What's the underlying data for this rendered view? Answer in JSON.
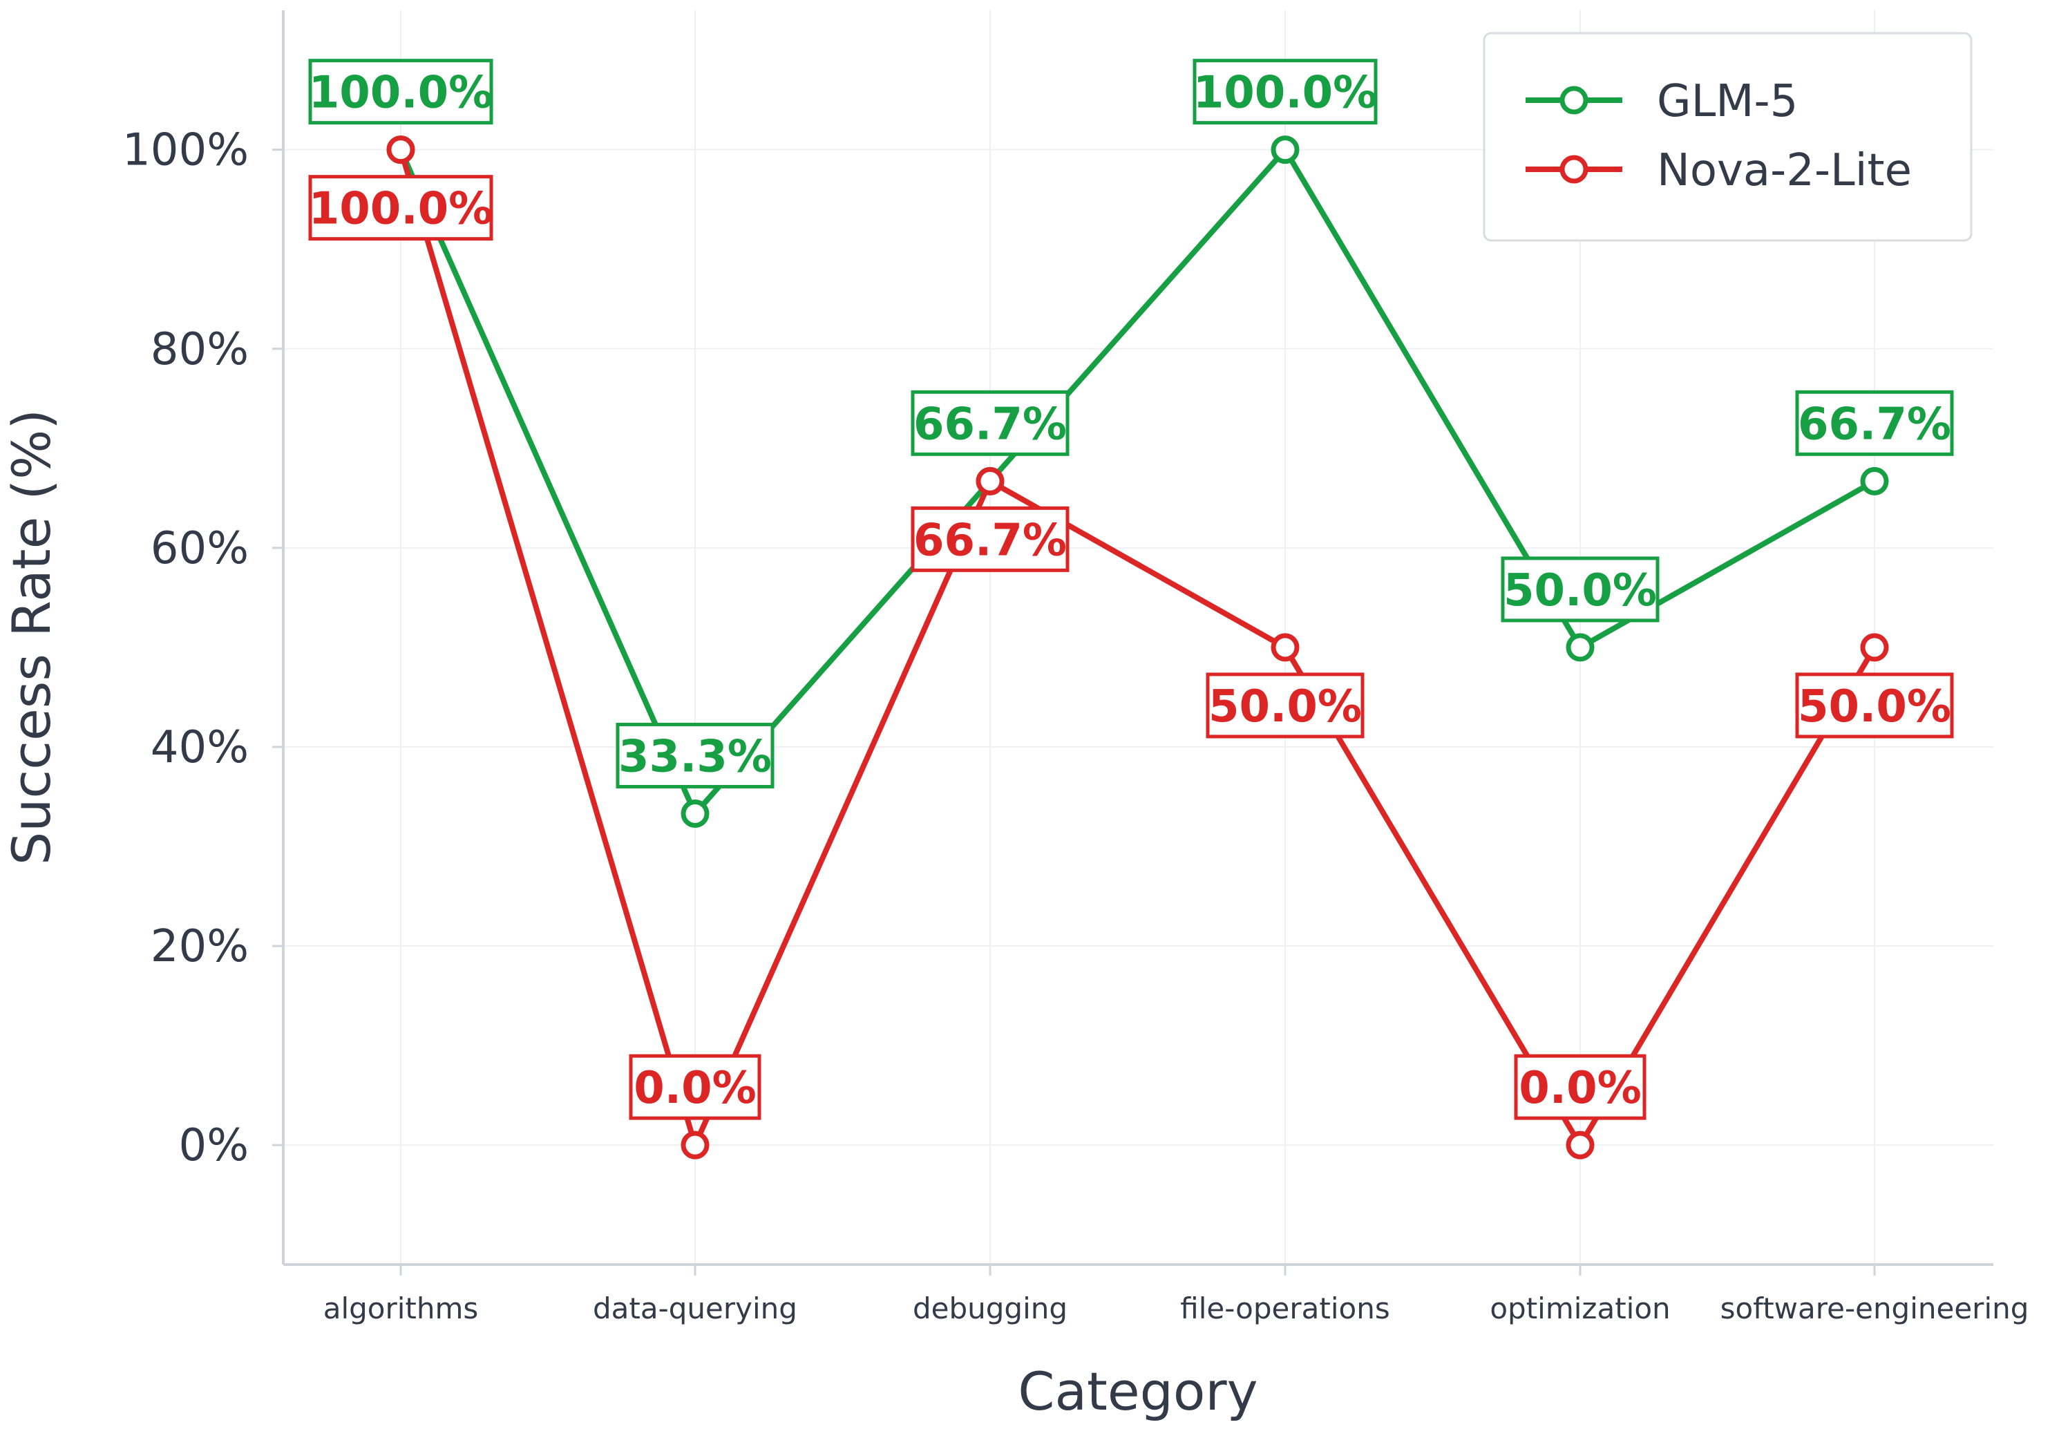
{
  "chart_data": {
    "type": "line",
    "title": "",
    "xlabel": "Category",
    "ylabel": "Success Rate (%)",
    "categories": [
      "algorithms",
      "data-querying",
      "debugging",
      "file-operations",
      "optimization",
      "software-engineering"
    ],
    "ylim": [
      -12,
      114
    ],
    "yticks": [
      0,
      20,
      40,
      60,
      80,
      100
    ],
    "ytick_labels": [
      "0%",
      "20%",
      "40%",
      "60%",
      "80%",
      "100%"
    ],
    "grid": true,
    "legend_position": "top-right",
    "series": [
      {
        "name": "GLM-5",
        "color": "#16a043",
        "values": [
          100.0,
          33.3,
          66.7,
          100.0,
          50.0,
          66.7
        ],
        "labels": [
          "100.0%",
          "33.3%",
          "66.7%",
          "100.0%",
          "50.0%",
          "66.7%"
        ]
      },
      {
        "name": "Nova-2-Lite",
        "color": "#dc2626",
        "values": [
          100.0,
          0.0,
          66.7,
          50.0,
          0.0,
          50.0
        ],
        "labels": [
          "100.0%",
          "0.0%",
          "66.7%",
          "50.0%",
          "0.0%",
          "50.0%"
        ]
      }
    ]
  }
}
